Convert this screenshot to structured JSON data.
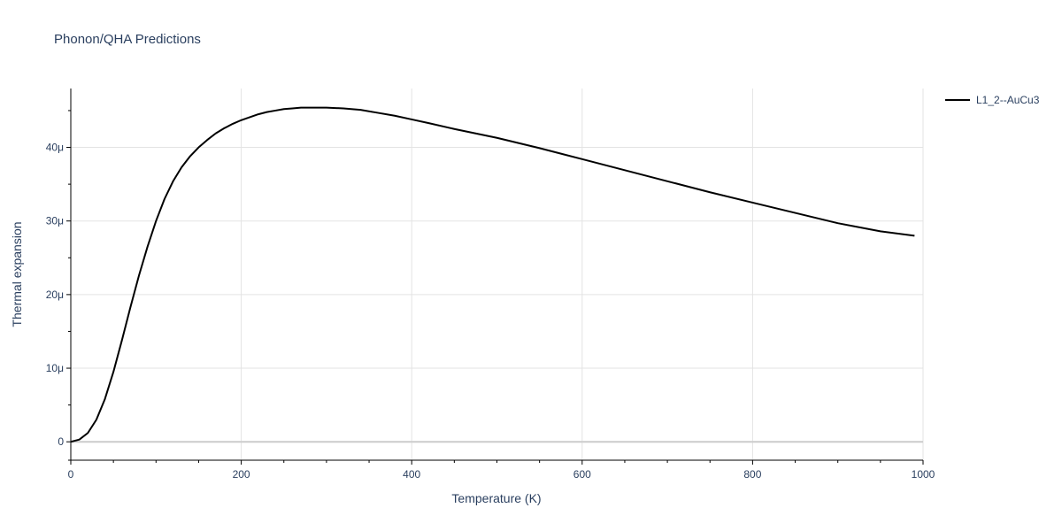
{
  "chart_data": {
    "type": "line",
    "title": "Phonon/QHA Predictions",
    "xlabel": "Temperature (K)",
    "ylabel": "Thermal expansion",
    "xlim": [
      0,
      1000
    ],
    "ylim": [
      -2.5e-06,
      4.8e-05
    ],
    "x_ticks": [
      0,
      200,
      400,
      600,
      800,
      1000
    ],
    "x_tick_labels": [
      "0",
      "200",
      "400",
      "600",
      "800",
      "1000"
    ],
    "y_ticks": [
      0,
      1e-05,
      2e-05,
      3e-05,
      4e-05
    ],
    "y_tick_labels": [
      "0",
      "10μ",
      "20μ",
      "30μ",
      "40μ"
    ],
    "grid": true,
    "legend_position": "top-right",
    "series": [
      {
        "name": "L1_2--AuCu3",
        "color": "#000000",
        "x": [
          0,
          10,
          20,
          30,
          40,
          50,
          60,
          70,
          80,
          90,
          100,
          110,
          120,
          130,
          140,
          150,
          160,
          170,
          180,
          190,
          200,
          210,
          220,
          230,
          240,
          250,
          260,
          270,
          280,
          290,
          300,
          320,
          340,
          360,
          380,
          400,
          420,
          450,
          500,
          550,
          600,
          650,
          700,
          750,
          800,
          850,
          900,
          950,
          990
        ],
        "y": [
          0,
          3e-07,
          1.2e-06,
          3e-06,
          5.8e-06,
          9.5e-06,
          1.38e-05,
          1.83e-05,
          2.26e-05,
          2.65e-05,
          3e-05,
          3.3e-05,
          3.54e-05,
          3.73e-05,
          3.88e-05,
          4e-05,
          4.1e-05,
          4.19e-05,
          4.26e-05,
          4.32e-05,
          4.37e-05,
          4.41e-05,
          4.45e-05,
          4.48e-05,
          4.5e-05,
          4.52e-05,
          4.53e-05,
          4.54e-05,
          4.54e-05,
          4.54e-05,
          4.54e-05,
          4.53e-05,
          4.51e-05,
          4.47e-05,
          4.43e-05,
          4.38e-05,
          4.33e-05,
          4.25e-05,
          4.13e-05,
          3.99e-05,
          3.84e-05,
          3.69e-05,
          3.54e-05,
          3.39e-05,
          3.25e-05,
          3.11e-05,
          2.97e-05,
          2.86e-05,
          2.8e-05
        ]
      }
    ]
  }
}
